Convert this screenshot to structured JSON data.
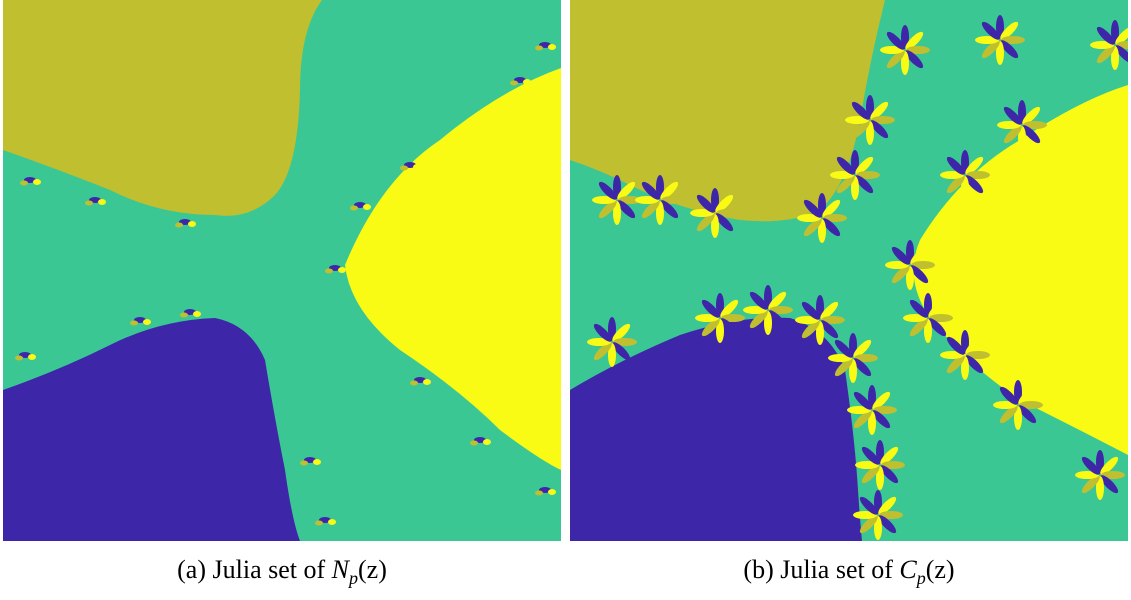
{
  "figures": [
    {
      "prefix": "(a) Julia set of ",
      "function": "N",
      "subscript": "p",
      "argument": "(z)"
    },
    {
      "prefix": "(b) Julia set of ",
      "function": "C",
      "subscript": "p",
      "argument": "(z)"
    }
  ]
}
